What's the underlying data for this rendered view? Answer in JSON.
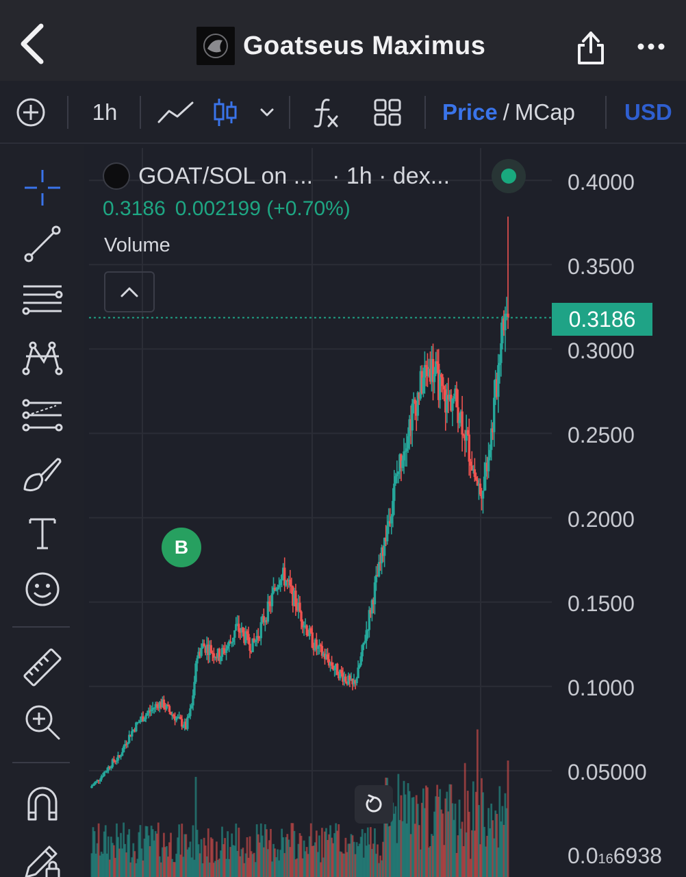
{
  "header": {
    "title": "Goatseus Maximus",
    "back_icon": "chevron-left-icon",
    "share_icon": "share-icon",
    "more_icon": "more-horizontal-icon"
  },
  "toolbar": {
    "add_icon": "plus-circle-icon",
    "interval": "1h",
    "line_icon": "line-chart-icon",
    "candle_icon": "candlestick-icon",
    "dropdown_icon": "chevron-down-icon",
    "indicators_icon": "function-icon",
    "layout_icon": "grid-icon",
    "price_label": "Price",
    "slash": "/",
    "mcap_label": "MCap",
    "currency": "USD",
    "accent_color": "#3a74ea"
  },
  "sidebar": {
    "tools": [
      "crosshair-icon",
      "trend-line-icon",
      "horizontal-lines-icon",
      "pattern-icon",
      "prediction-icon",
      "brush-icon",
      "text-icon",
      "emoji-icon",
      "ruler-icon",
      "zoom-in-icon",
      "magnet-icon",
      "lock-drawings-icon"
    ]
  },
  "chart": {
    "pair": "GOAT/SOL on ...",
    "meta": "· 1h · dex...",
    "last_price": "0.3186",
    "change": "0.002199 (+0.70%)",
    "volume_label": "Volume",
    "price_tag": "0.3186",
    "marker_label": "B",
    "up_color": "#26a69a",
    "down_color": "#ef5350",
    "axis_labels": [
      "0.4000",
      "0.3500",
      "0.3000",
      "0.2500",
      "0.2000",
      "0.1500",
      "0.1000",
      "0.05000"
    ],
    "bottom_label_main": "0.0",
    "bottom_label_sub": "16",
    "bottom_label_end": "6938"
  },
  "chart_data": {
    "type": "candlestick",
    "ylim": [
      0.0,
      0.4
    ],
    "y_ticks": [
      0.05,
      0.1,
      0.15,
      0.2,
      0.25,
      0.3,
      0.35,
      0.4
    ],
    "close_path": [
      0.041,
      0.044,
      0.048,
      0.052,
      0.056,
      0.058,
      0.066,
      0.072,
      0.077,
      0.081,
      0.084,
      0.087,
      0.09,
      0.089,
      0.085,
      0.082,
      0.079,
      0.076,
      0.088,
      0.118,
      0.124,
      0.123,
      0.12,
      0.118,
      0.122,
      0.126,
      0.135,
      0.132,
      0.127,
      0.124,
      0.131,
      0.14,
      0.147,
      0.158,
      0.167,
      0.163,
      0.155,
      0.148,
      0.14,
      0.132,
      0.125,
      0.121,
      0.118,
      0.114,
      0.11,
      0.107,
      0.104,
      0.1,
      0.108,
      0.125,
      0.142,
      0.158,
      0.172,
      0.19,
      0.208,
      0.225,
      0.24,
      0.253,
      0.265,
      0.275,
      0.285,
      0.29,
      0.284,
      0.275,
      0.268,
      0.272,
      0.265,
      0.255,
      0.24,
      0.225,
      0.215,
      0.23,
      0.25,
      0.28,
      0.32,
      0.3186
    ],
    "last": 0.3186
  }
}
